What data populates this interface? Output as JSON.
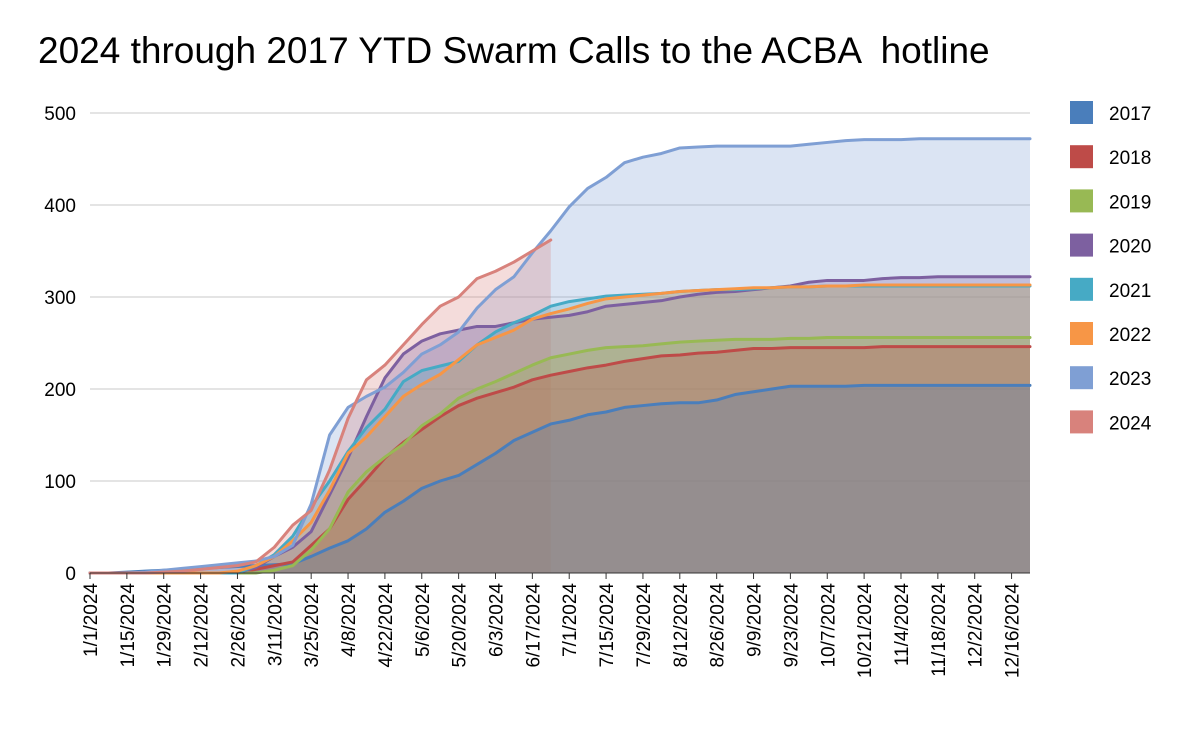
{
  "chart_data": {
    "type": "area",
    "title": "2024 through 2017 YTD Swarm Calls to the ACBA  hotline",
    "xlabel": "",
    "ylabel": "",
    "ylim": [
      0,
      500
    ],
    "y_ticks": [
      0,
      100,
      200,
      300,
      400,
      500
    ],
    "x_tick_labels": [
      "1/1/2024",
      "1/15/2024",
      "1/29/2024",
      "2/12/2024",
      "2/26/2024",
      "3/11/2024",
      "3/25/2024",
      "4/8/2024",
      "4/22/2024",
      "5/6/2024",
      "5/20/2024",
      "6/3/2024",
      "6/17/2024",
      "7/1/2024",
      "7/15/2024",
      "7/29/2024",
      "8/12/2024",
      "8/26/2024",
      "9/9/2024",
      "9/23/2024",
      "10/7/2024",
      "10/21/2024",
      "11/4/2024",
      "11/18/2024",
      "12/2/2024",
      "12/16/2024"
    ],
    "x_dates": [
      "1/1/2024",
      "1/8/2024",
      "1/15/2024",
      "1/22/2024",
      "1/29/2024",
      "2/5/2024",
      "2/12/2024",
      "2/19/2024",
      "2/26/2024",
      "3/4/2024",
      "3/11/2024",
      "3/18/2024",
      "3/25/2024",
      "4/1/2024",
      "4/8/2024",
      "4/15/2024",
      "4/22/2024",
      "4/29/2024",
      "5/6/2024",
      "5/13/2024",
      "5/20/2024",
      "5/27/2024",
      "6/3/2024",
      "6/10/2024",
      "6/17/2024",
      "6/24/2024",
      "7/1/2024",
      "7/8/2024",
      "7/15/2024",
      "7/22/2024",
      "7/29/2024",
      "8/5/2024",
      "8/12/2024",
      "8/19/2024",
      "8/26/2024",
      "9/2/2024",
      "9/9/2024",
      "9/16/2024",
      "9/23/2024",
      "9/30/2024",
      "10/7/2024",
      "10/14/2024",
      "10/21/2024",
      "10/28/2024",
      "11/4/2024",
      "11/11/2024",
      "11/18/2024",
      "11/25/2024",
      "12/2/2024",
      "12/9/2024",
      "12/16/2024",
      "12/23/2024"
    ],
    "grid": true,
    "legend_position": "right",
    "series": [
      {
        "name": "2017",
        "color": "#4a7ebb",
        "values": [
          0,
          0,
          1,
          2,
          3,
          4,
          5,
          6,
          7,
          8,
          9,
          10,
          18,
          27,
          35,
          48,
          66,
          78,
          92,
          100,
          106,
          118,
          130,
          144,
          153,
          162,
          166,
          172,
          175,
          180,
          182,
          184,
          185,
          185,
          188,
          194,
          197,
          200,
          203,
          203,
          203,
          203,
          204,
          204,
          204,
          204,
          204,
          204,
          204,
          204,
          204,
          204
        ]
      },
      {
        "name": "2018",
        "color": "#be4b48",
        "values": [
          0,
          0,
          0,
          0,
          0,
          0,
          0,
          0,
          0,
          4,
          8,
          12,
          30,
          48,
          80,
          102,
          125,
          142,
          156,
          170,
          182,
          190,
          196,
          202,
          210,
          215,
          219,
          223,
          226,
          230,
          233,
          236,
          237,
          239,
          240,
          242,
          244,
          244,
          245,
          245,
          245,
          245,
          245,
          246,
          246,
          246,
          246,
          246,
          246,
          246,
          246,
          246
        ]
      },
      {
        "name": "2019",
        "color": "#98b954",
        "values": [
          0,
          0,
          0,
          0,
          0,
          0,
          0,
          0,
          0,
          0,
          3,
          8,
          25,
          48,
          88,
          110,
          126,
          140,
          160,
          173,
          190,
          200,
          208,
          217,
          226,
          234,
          238,
          242,
          245,
          246,
          247,
          249,
          251,
          252,
          253,
          254,
          254,
          254,
          255,
          255,
          256,
          256,
          256,
          256,
          256,
          256,
          256,
          256,
          256,
          256,
          256,
          256
        ]
      },
      {
        "name": "2020",
        "color": "#7d60a0",
        "values": [
          0,
          0,
          0,
          0,
          0,
          0,
          0,
          0,
          0,
          6,
          18,
          28,
          45,
          85,
          125,
          170,
          212,
          238,
          252,
          260,
          264,
          268,
          268,
          272,
          276,
          278,
          280,
          284,
          290,
          292,
          294,
          296,
          300,
          303,
          305,
          306,
          308,
          310,
          312,
          316,
          318,
          318,
          318,
          320,
          321,
          321,
          322,
          322,
          322,
          322,
          322,
          322
        ]
      },
      {
        "name": "2021",
        "color": "#46aac5",
        "values": [
          0,
          0,
          0,
          0,
          0,
          0,
          0,
          0,
          0,
          8,
          20,
          40,
          72,
          100,
          132,
          158,
          178,
          208,
          220,
          225,
          230,
          248,
          262,
          272,
          280,
          290,
          295,
          298,
          301,
          302,
          303,
          304,
          306,
          307,
          308,
          308,
          309,
          310,
          311,
          311,
          312,
          312,
          312,
          312,
          312,
          312,
          312,
          312,
          312,
          312,
          312,
          312
        ]
      },
      {
        "name": "2022",
        "color": "#f79646",
        "values": [
          0,
          0,
          0,
          0,
          0,
          0,
          0,
          0,
          2,
          8,
          18,
          35,
          55,
          90,
          130,
          148,
          170,
          192,
          205,
          216,
          232,
          248,
          256,
          264,
          276,
          282,
          287,
          293,
          298,
          300,
          302,
          304,
          306,
          307,
          308,
          309,
          310,
          310,
          311,
          311,
          312,
          312,
          313,
          313,
          313,
          313,
          313,
          313,
          313,
          313,
          313,
          313
        ]
      },
      {
        "name": "2023",
        "color": "#7f9fd4",
        "values": [
          0,
          0,
          0,
          1,
          3,
          5,
          7,
          9,
          11,
          13,
          18,
          30,
          75,
          150,
          180,
          192,
          202,
          218,
          238,
          248,
          262,
          288,
          308,
          322,
          348,
          372,
          398,
          418,
          430,
          446,
          452,
          456,
          462,
          463,
          464,
          464,
          464,
          464,
          464,
          466,
          468,
          470,
          471,
          471,
          471,
          472,
          472,
          472,
          472,
          472,
          472,
          472
        ]
      },
      {
        "name": "2024",
        "color": "#d8827c",
        "values": [
          0,
          0,
          0,
          0,
          1,
          2,
          4,
          6,
          8,
          12,
          28,
          52,
          68,
          112,
          168,
          210,
          226,
          248,
          270,
          290,
          300,
          320,
          328,
          338,
          350,
          362
        ]
      }
    ]
  }
}
